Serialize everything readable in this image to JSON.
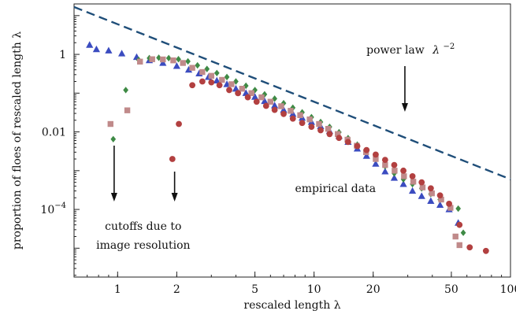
{
  "chart_data": {
    "type": "scatter",
    "xscale": "log",
    "yscale": "log",
    "xlim": [
      0.6,
      100
    ],
    "ylim": [
      1.8e-06,
      20
    ],
    "xlabel": "rescaled length λ",
    "ylabel": "proportion of floes of rescaled length λ",
    "x_ticks": [
      {
        "value": 1,
        "label": "1"
      },
      {
        "value": 2,
        "label": "2"
      },
      {
        "value": 5,
        "label": "5"
      },
      {
        "value": 10,
        "label": "10"
      },
      {
        "value": 20,
        "label": "20"
      },
      {
        "value": 50,
        "label": "50"
      },
      {
        "value": 100,
        "label": "100"
      }
    ],
    "y_ticks": [
      {
        "value": 1,
        "label": "1"
      },
      {
        "value": 0.01,
        "label": "0.01"
      },
      {
        "value": 0.0001,
        "label": "10−4",
        "base": "10",
        "exp": "−4"
      }
    ],
    "power_law": {
      "label": "power law",
      "label_math": "λ",
      "label_exp": "−2",
      "exponent": -2,
      "coefficient": 6.0,
      "color": "#1f4e79"
    },
    "annotations": {
      "cutoffs_line1": "cutoffs due to",
      "cutoffs_line2": "image resolution",
      "empirical": "empirical data"
    },
    "series": [
      {
        "marker": "triangle",
        "color": "#3b4cc0",
        "points": [
          [
            0.72,
            1.75
          ],
          [
            0.78,
            1.35
          ],
          [
            0.9,
            1.25
          ],
          [
            1.05,
            1.05
          ],
          [
            1.25,
            0.85
          ],
          [
            1.45,
            0.7
          ],
          [
            1.7,
            0.6
          ],
          [
            2.0,
            0.5
          ],
          [
            2.3,
            0.4
          ],
          [
            2.6,
            0.32
          ],
          [
            2.9,
            0.26
          ],
          [
            3.2,
            0.21
          ],
          [
            3.6,
            0.17
          ],
          [
            4.0,
            0.13
          ],
          [
            4.5,
            0.1
          ],
          [
            5.0,
            0.08
          ],
          [
            5.6,
            0.062
          ],
          [
            6.3,
            0.048
          ],
          [
            7.0,
            0.037
          ],
          [
            7.8,
            0.029
          ],
          [
            8.7,
            0.023
          ],
          [
            9.7,
            0.018
          ],
          [
            10.8,
            0.014
          ],
          [
            12.0,
            0.0105
          ],
          [
            13.4,
            0.0078
          ],
          [
            14.9,
            0.0055
          ],
          [
            16.6,
            0.0037
          ],
          [
            18.5,
            0.0024
          ],
          [
            20.6,
            0.0015
          ],
          [
            23.0,
            0.00095
          ],
          [
            25.6,
            0.00065
          ],
          [
            28.5,
            0.00045
          ],
          [
            31.7,
            0.0003
          ],
          [
            35.3,
            0.00022
          ],
          [
            39.3,
            0.000165
          ],
          [
            43.8,
            0.00013
          ],
          [
            48.7,
            0.0001
          ],
          [
            54.2,
            4.5e-05
          ]
        ]
      },
      {
        "marker": "diamond",
        "color": "#3e8a45",
        "points": [
          [
            0.95,
            0.0065
          ],
          [
            1.1,
            0.12
          ],
          [
            1.28,
            0.72
          ],
          [
            1.45,
            0.8
          ],
          [
            1.62,
            0.82
          ],
          [
            1.82,
            0.8
          ],
          [
            2.04,
            0.75
          ],
          [
            2.28,
            0.66
          ],
          [
            2.55,
            0.52
          ],
          [
            2.85,
            0.42
          ],
          [
            3.2,
            0.33
          ],
          [
            3.6,
            0.26
          ],
          [
            4.0,
            0.2
          ],
          [
            4.5,
            0.155
          ],
          [
            5.0,
            0.12
          ],
          [
            5.6,
            0.093
          ],
          [
            6.3,
            0.072
          ],
          [
            7.0,
            0.055
          ],
          [
            7.8,
            0.042
          ],
          [
            8.7,
            0.032
          ],
          [
            9.7,
            0.024
          ],
          [
            10.8,
            0.018
          ],
          [
            12.0,
            0.0135
          ],
          [
            13.4,
            0.0098
          ],
          [
            14.9,
            0.0069
          ],
          [
            16.6,
            0.0047
          ],
          [
            18.5,
            0.0031
          ],
          [
            20.6,
            0.002
          ],
          [
            23.0,
            0.0013
          ],
          [
            25.6,
            0.00085
          ],
          [
            28.5,
            0.0006
          ],
          [
            31.7,
            0.00045
          ],
          [
            35.3,
            0.00035
          ],
          [
            39.3,
            0.00025
          ],
          [
            43.8,
            0.00018
          ],
          [
            48.7,
            0.00013
          ],
          [
            54.2,
            0.000105
          ],
          [
            57.5,
            2.5e-05
          ]
        ]
      },
      {
        "marker": "square",
        "color": "#c08a8a",
        "points": [
          [
            0.92,
            0.016
          ],
          [
            1.12,
            0.036
          ],
          [
            1.3,
            0.65
          ],
          [
            1.5,
            0.75
          ],
          [
            1.7,
            0.74
          ],
          [
            1.92,
            0.7
          ],
          [
            2.15,
            0.6
          ],
          [
            2.4,
            0.45
          ],
          [
            2.7,
            0.35
          ],
          [
            3.0,
            0.28
          ],
          [
            3.4,
            0.22
          ],
          [
            3.8,
            0.17
          ],
          [
            4.3,
            0.13
          ],
          [
            4.8,
            0.1
          ],
          [
            5.4,
            0.078
          ],
          [
            6.0,
            0.06
          ],
          [
            6.8,
            0.046
          ],
          [
            7.6,
            0.035
          ],
          [
            8.5,
            0.027
          ],
          [
            9.5,
            0.021
          ],
          [
            10.6,
            0.016
          ],
          [
            11.8,
            0.012
          ],
          [
            13.2,
            0.0088
          ],
          [
            14.8,
            0.0063
          ],
          [
            16.5,
            0.0044
          ],
          [
            18.4,
            0.003
          ],
          [
            20.6,
            0.002
          ],
          [
            23.0,
            0.0014
          ],
          [
            25.7,
            0.001
          ],
          [
            28.7,
            0.00072
          ],
          [
            32.0,
            0.00052
          ],
          [
            35.7,
            0.00037
          ],
          [
            39.8,
            0.00026
          ],
          [
            44.4,
            0.00018
          ],
          [
            49.5,
            0.00011
          ],
          [
            52.5,
            2e-05
          ],
          [
            55.0,
            1.2e-05
          ]
        ]
      },
      {
        "marker": "circle",
        "color": "#b24040",
        "points": [
          [
            1.9,
            0.002
          ],
          [
            2.05,
            0.016
          ],
          [
            2.4,
            0.16
          ],
          [
            2.7,
            0.2
          ],
          [
            3.0,
            0.19
          ],
          [
            3.3,
            0.16
          ],
          [
            3.7,
            0.12
          ],
          [
            4.1,
            0.1
          ],
          [
            4.6,
            0.078
          ],
          [
            5.1,
            0.06
          ],
          [
            5.7,
            0.047
          ],
          [
            6.3,
            0.037
          ],
          [
            7.0,
            0.029
          ],
          [
            7.8,
            0.022
          ],
          [
            8.7,
            0.017
          ],
          [
            9.7,
            0.0135
          ],
          [
            10.8,
            0.011
          ],
          [
            12.0,
            0.0088
          ],
          [
            13.4,
            0.007
          ],
          [
            14.9,
            0.0055
          ],
          [
            16.6,
            0.0043
          ],
          [
            18.5,
            0.0034
          ],
          [
            20.6,
            0.0026
          ],
          [
            23.0,
            0.0019
          ],
          [
            25.6,
            0.0014
          ],
          [
            28.5,
            0.001
          ],
          [
            31.7,
            0.00072
          ],
          [
            35.3,
            0.0005
          ],
          [
            39.3,
            0.00035
          ],
          [
            43.8,
            0.00023
          ],
          [
            48.7,
            0.00014
          ],
          [
            55.0,
            4e-05
          ],
          [
            62.0,
            1.05e-05
          ],
          [
            75.0,
            8.5e-06
          ]
        ]
      }
    ]
  }
}
